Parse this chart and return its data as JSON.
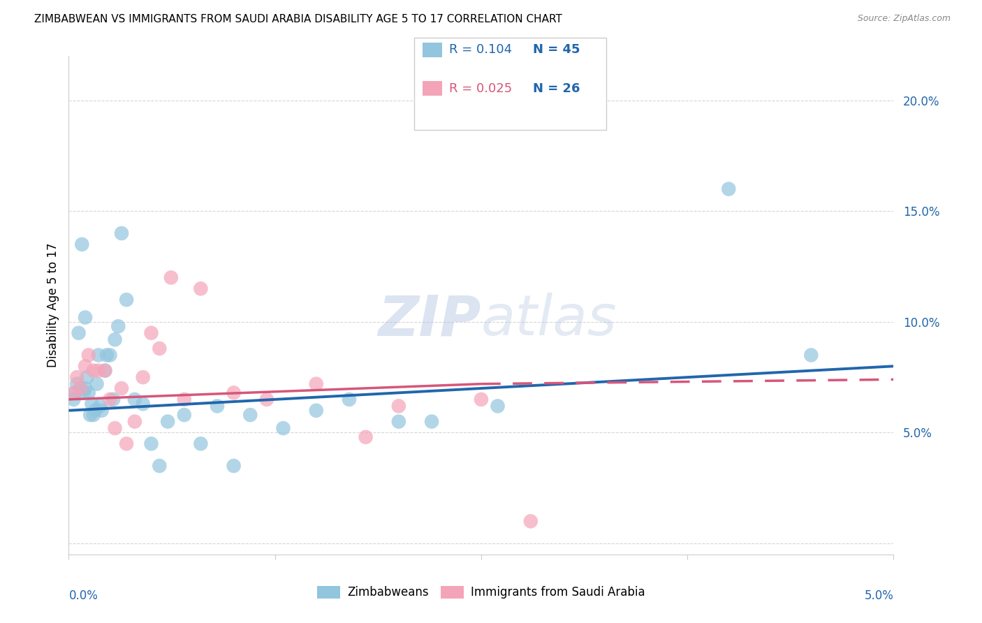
{
  "title": "ZIMBABWEAN VS IMMIGRANTS FROM SAUDI ARABIA DISABILITY AGE 5 TO 17 CORRELATION CHART",
  "source": "Source: ZipAtlas.com",
  "ylabel": "Disability Age 5 to 17",
  "xlim": [
    0.0,
    5.0
  ],
  "ylim": [
    -0.5,
    22.0
  ],
  "yticks": [
    0.0,
    5.0,
    10.0,
    15.0,
    20.0
  ],
  "ytick_labels": [
    "",
    "5.0%",
    "10.0%",
    "15.0%",
    "20.0%"
  ],
  "blue_color": "#92c5de",
  "pink_color": "#f4a4b8",
  "blue_line_color": "#2166ac",
  "pink_line_color": "#d6567a",
  "legend_label1": "Zimbabweans",
  "legend_label2": "Immigrants from Saudi Arabia",
  "watermark_zip": "ZIP",
  "watermark_atlas": "atlas",
  "zim_x": [
    0.03,
    0.04,
    0.05,
    0.06,
    0.07,
    0.08,
    0.09,
    0.1,
    0.1,
    0.11,
    0.12,
    0.13,
    0.14,
    0.15,
    0.16,
    0.17,
    0.18,
    0.19,
    0.2,
    0.22,
    0.23,
    0.25,
    0.27,
    0.28,
    0.3,
    0.32,
    0.35,
    0.4,
    0.45,
    0.5,
    0.55,
    0.6,
    0.7,
    0.8,
    0.9,
    1.0,
    1.1,
    1.3,
    1.5,
    1.7,
    2.0,
    2.2,
    2.6,
    4.0,
    4.5
  ],
  "zim_y": [
    6.5,
    6.8,
    7.2,
    9.5,
    7.0,
    13.5,
    6.8,
    10.2,
    7.0,
    7.5,
    6.8,
    5.8,
    6.3,
    5.8,
    6.0,
    7.2,
    8.5,
    6.2,
    6.0,
    7.8,
    8.5,
    8.5,
    6.5,
    9.2,
    9.8,
    14.0,
    11.0,
    6.5,
    6.3,
    4.5,
    3.5,
    5.5,
    5.8,
    4.5,
    6.2,
    3.5,
    5.8,
    5.2,
    6.0,
    6.5,
    5.5,
    5.5,
    6.2,
    16.0,
    8.5
  ],
  "sau_x": [
    0.03,
    0.05,
    0.07,
    0.1,
    0.12,
    0.15,
    0.18,
    0.22,
    0.25,
    0.28,
    0.32,
    0.35,
    0.4,
    0.45,
    0.5,
    0.55,
    0.62,
    0.7,
    0.8,
    1.0,
    1.2,
    1.5,
    1.8,
    2.0,
    2.5,
    2.8
  ],
  "sau_y": [
    6.8,
    7.5,
    7.0,
    8.0,
    8.5,
    7.8,
    7.8,
    7.8,
    6.5,
    5.2,
    7.0,
    4.5,
    5.5,
    7.5,
    9.5,
    8.8,
    12.0,
    6.5,
    11.5,
    6.8,
    6.5,
    7.2,
    4.8,
    6.2,
    6.5,
    1.0
  ],
  "zim_line_x0": 0.0,
  "zim_line_x1": 5.0,
  "zim_line_y0": 6.0,
  "zim_line_y1": 8.0,
  "sau_solid_x0": 0.0,
  "sau_solid_x1": 2.5,
  "sau_solid_y0": 6.5,
  "sau_solid_y1": 7.2,
  "sau_dash_x0": 2.5,
  "sau_dash_x1": 5.0,
  "sau_dash_y0": 7.2,
  "sau_dash_y1": 7.4
}
